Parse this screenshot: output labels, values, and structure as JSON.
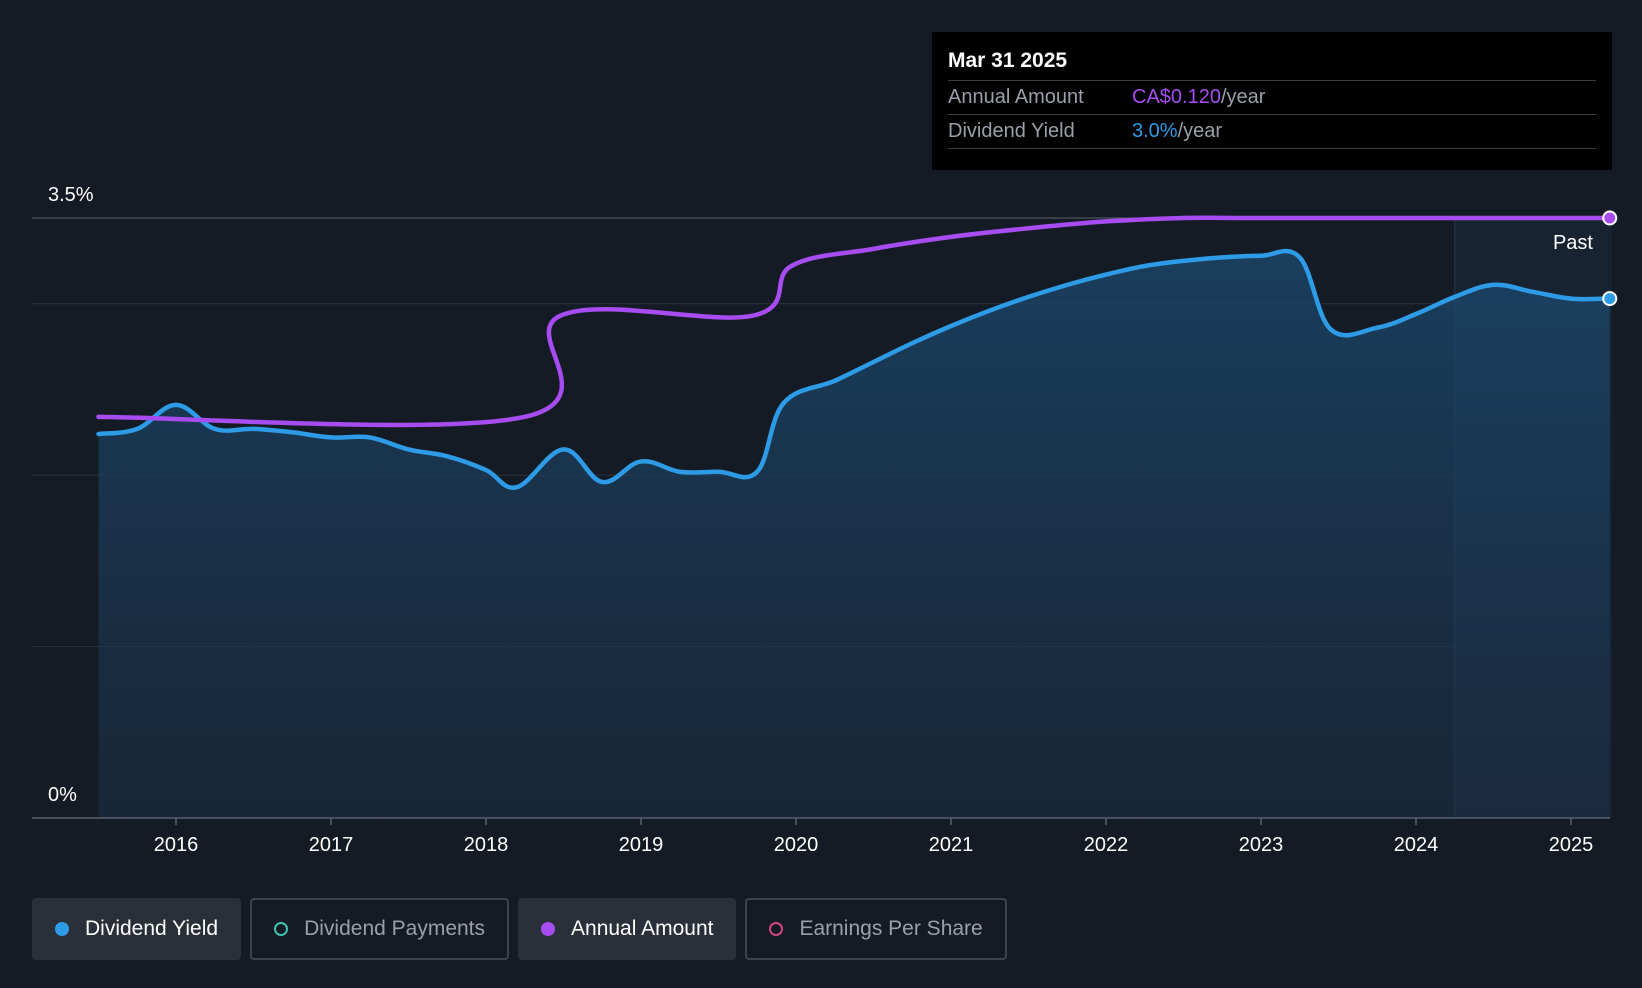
{
  "tooltip": {
    "date": "Mar 31 2025",
    "rows": [
      {
        "label": "Annual Amount",
        "value": "CA$0.120",
        "unit": "/year",
        "color": "#a64cf0"
      },
      {
        "label": "Dividend Yield",
        "value": "3.0%",
        "unit": "/year",
        "color": "#2d9be6"
      }
    ]
  },
  "past_label": "Past",
  "legend": [
    {
      "label": "Dividend Yield",
      "color": "#2d9be6",
      "active": true,
      "filled": true
    },
    {
      "label": "Dividend Payments",
      "color": "#3fc1b0",
      "active": false,
      "filled": false
    },
    {
      "label": "Annual Amount",
      "color": "#a64cf0",
      "active": true,
      "filled": true
    },
    {
      "label": "Earnings Per Share",
      "color": "#d2477e",
      "active": false,
      "filled": false
    }
  ],
  "chart_data": {
    "type": "line",
    "y_tick_labels": [
      "3.5%",
      "0%"
    ],
    "ylim": [
      0,
      3.5
    ],
    "xlim": [
      2015.05,
      2025.25
    ],
    "x_ticks": [
      "2016",
      "2017",
      "2018",
      "2019",
      "2020",
      "2021",
      "2022",
      "2023",
      "2024",
      "2025"
    ],
    "past_region_start": 2024.25,
    "grid": true,
    "series": [
      {
        "name": "Dividend Yield",
        "color": "#2d9be6",
        "fill": true,
        "unit": "%",
        "x": [
          2015.5,
          2015.75,
          2016.0,
          2016.25,
          2016.5,
          2016.75,
          2017.0,
          2017.25,
          2017.5,
          2017.75,
          2018.0,
          2018.2,
          2018.5,
          2018.75,
          2019.0,
          2019.25,
          2019.5,
          2019.75,
          2019.92,
          2020.25,
          2020.5,
          2020.75,
          2021.0,
          2021.25,
          2021.5,
          2021.75,
          2022.0,
          2022.25,
          2022.5,
          2022.75,
          2023.0,
          2023.25,
          2023.45,
          2023.75,
          2024.0,
          2024.25,
          2024.5,
          2024.75,
          2025.0,
          2025.25
        ],
        "y": [
          2.24,
          2.27,
          2.41,
          2.27,
          2.27,
          2.25,
          2.22,
          2.22,
          2.15,
          2.11,
          2.03,
          1.93,
          2.15,
          1.96,
          2.08,
          2.02,
          2.02,
          2.02,
          2.42,
          2.55,
          2.66,
          2.77,
          2.87,
          2.96,
          3.04,
          3.11,
          3.17,
          3.22,
          3.25,
          3.27,
          3.28,
          3.27,
          2.85,
          2.86,
          2.94,
          3.04,
          3.11,
          3.07,
          3.03,
          3.03
        ]
      },
      {
        "name": "Annual Amount",
        "color": "#a64cf0",
        "fill": false,
        "x": [
          2015.5,
          2018.25,
          2018.48,
          2019.72,
          2019.97,
          2020.5,
          2021.0,
          2021.5,
          2022.0,
          2022.5,
          2023.0,
          2024.0,
          2025.25
        ],
        "y": [
          2.34,
          2.34,
          2.93,
          2.93,
          3.22,
          3.32,
          3.39,
          3.44,
          3.48,
          3.5,
          3.5,
          3.5,
          3.5
        ]
      }
    ]
  }
}
